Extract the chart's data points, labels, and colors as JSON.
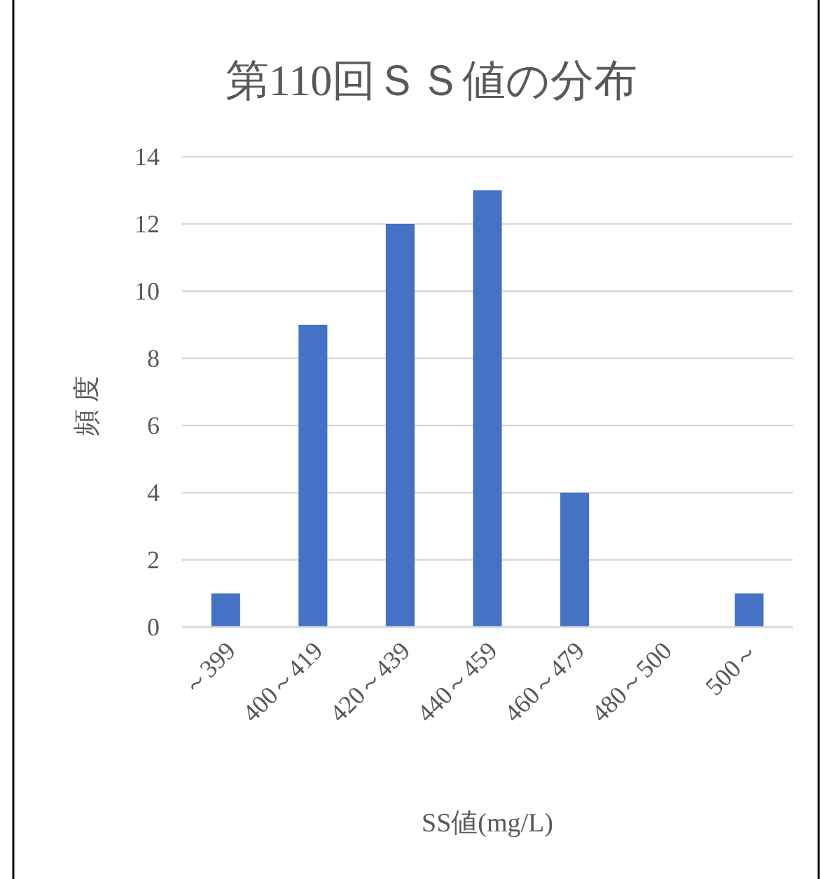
{
  "chart_data": {
    "type": "bar",
    "title": "第110回ＳＳ値の分布",
    "xlabel": "SS値(mg/L)",
    "ylabel": "頻 度",
    "categories": [
      "～399",
      "400～419",
      "420～439",
      "440～459",
      "460～479",
      "480～500",
      "500～"
    ],
    "values": [
      1,
      9,
      12,
      13,
      4,
      0,
      1
    ],
    "color": "#4472c4",
    "ylim": [
      0,
      14
    ],
    "yticks": [
      0,
      2,
      4,
      6,
      8,
      10,
      12,
      14
    ],
    "grid": "y"
  }
}
